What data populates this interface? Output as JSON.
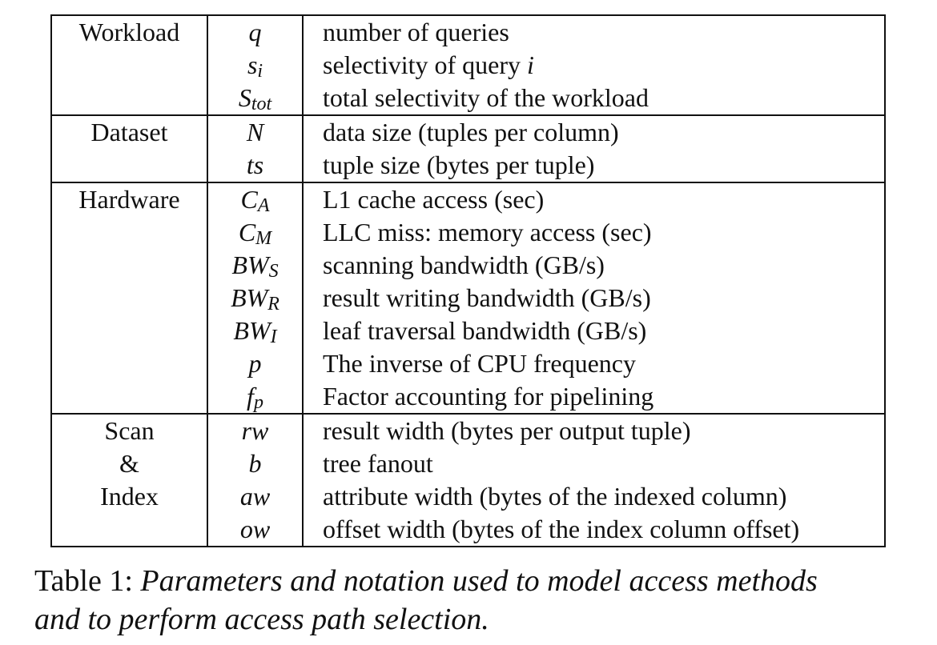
{
  "groups": [
    {
      "name": "Workload",
      "rows": [
        {
          "sym": "q",
          "sub": "",
          "desc": "number of queries"
        },
        {
          "sym": "s",
          "sub": "i",
          "desc": "selectivity of query ",
          "desc_italic": "i"
        },
        {
          "sym": "S",
          "sub": "tot",
          "desc": "total selectivity of the workload"
        }
      ]
    },
    {
      "name": "Dataset",
      "rows": [
        {
          "sym": "N",
          "sub": "",
          "desc": "data size (tuples per column)"
        },
        {
          "sym": "ts",
          "sub": "",
          "desc": "tuple size (bytes per tuple)"
        }
      ]
    },
    {
      "name": "Hardware",
      "rows": [
        {
          "sym": "C",
          "sub": "A",
          "desc": "L1 cache access (sec)"
        },
        {
          "sym": "C",
          "sub": "M",
          "desc": "LLC miss: memory access (sec)"
        },
        {
          "sym": "BW",
          "sub": "S",
          "desc": "scanning bandwidth (GB/s)"
        },
        {
          "sym": "BW",
          "sub": "R",
          "desc": "result writing bandwidth (GB/s)"
        },
        {
          "sym": "BW",
          "sub": "I",
          "desc": "leaf traversal bandwidth (GB/s)"
        },
        {
          "sym": "p",
          "sub": "",
          "desc": "The inverse of CPU frequency"
        },
        {
          "sym": "f",
          "sub": "p",
          "desc": "Factor accounting for pipelining"
        }
      ]
    },
    {
      "name_lines": [
        "Scan",
        "&",
        "Index"
      ],
      "rows": [
        {
          "sym": "rw",
          "sub": "",
          "desc": "result width (bytes per output tuple)"
        },
        {
          "sym": "b",
          "sub": "",
          "desc": "tree fanout"
        },
        {
          "sym": "aw",
          "sub": "",
          "desc": "attribute width (bytes of the indexed column)"
        },
        {
          "sym": "ow",
          "sub": "",
          "desc": "offset width (bytes of the index column offset)"
        }
      ]
    }
  ],
  "caption": {
    "label": "Table 1:",
    "body_line1": "Parameters and notation used to model access methods",
    "body_line2": "and to perform access path selection."
  }
}
